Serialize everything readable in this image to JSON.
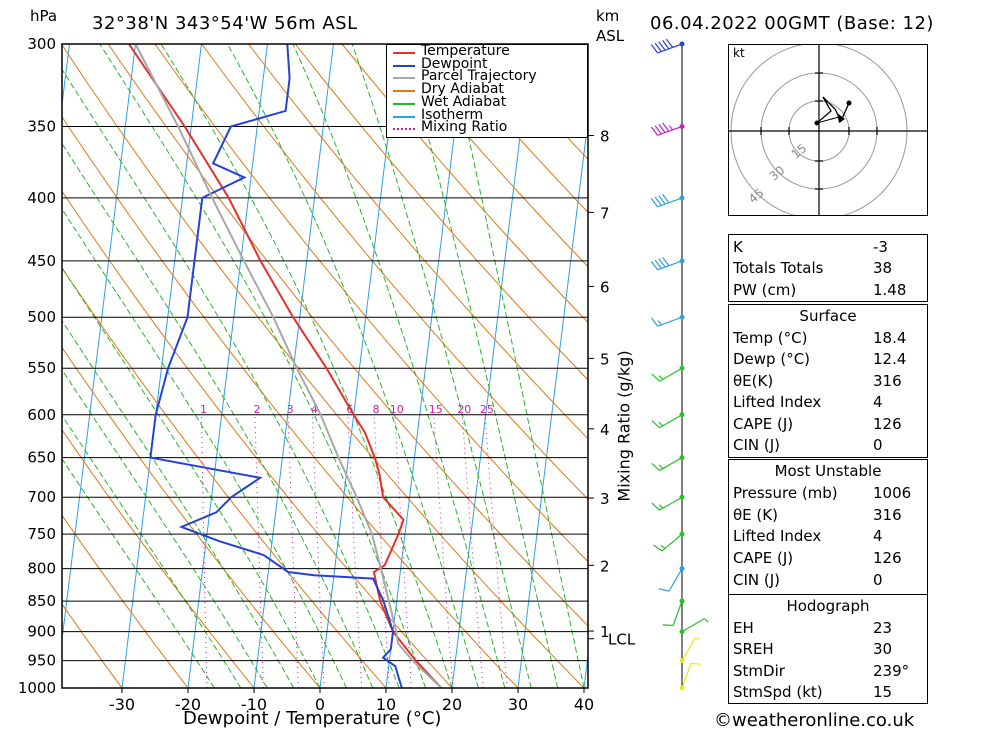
{
  "header": {
    "unit_hpa": "hPa",
    "location": "32°38'N  343°54'W  56m  ASL",
    "km_label": "km",
    "asl_label": "ASL",
    "datetime": "06.04.2022  00GMT  (Base: 12)"
  },
  "chart_data": {
    "type": "line",
    "title": "32°38'N  343°54'W  56m  ASL",
    "xlabel": "Dewpoint / Temperature (°C)",
    "ylabel": "hPa",
    "y2label": "Mixing Ratio (g/kg)",
    "xlim": [
      -40,
      40
    ],
    "ylim": [
      1000,
      300
    ],
    "pressure_ticks": [
      300,
      350,
      400,
      450,
      500,
      550,
      600,
      650,
      700,
      750,
      800,
      850,
      900,
      950,
      1000
    ],
    "temp_ticks": [
      -30,
      -20,
      -10,
      0,
      10,
      20,
      30,
      40
    ],
    "km_ticks": [
      "8",
      "7",
      "6",
      "5",
      "4",
      "3",
      "2",
      "1"
    ],
    "lcl_label": "LCL",
    "mixing_ratio_labels": [
      "1",
      "2",
      "3",
      "4",
      "6",
      "8",
      "10",
      "15",
      "20",
      "25"
    ],
    "legend": [
      "Temperature",
      "Dewpoint",
      "Parcel Trajectory",
      "Dry Adiabat",
      "Wet Adiabat",
      "Isotherm",
      "Mixing Ratio"
    ],
    "legend_position": "top-right",
    "colors": {
      "temperature": "#e8302a",
      "dewpoint": "#2442d8",
      "parcel": "#a8a8a8",
      "dry_adiabat": "#e07818",
      "wet_adiabat": "#28b428",
      "isotherm": "#30a0e0",
      "mixing_ratio": "#d020a0"
    },
    "series": [
      {
        "name": "Temperature",
        "points": [
          [
            1000,
            18.4
          ],
          [
            950,
            14
          ],
          [
            900,
            10
          ],
          [
            850,
            7.5
          ],
          [
            820,
            6.5
          ],
          [
            805,
            6
          ],
          [
            795,
            7.5
          ],
          [
            780,
            8
          ],
          [
            750,
            9
          ],
          [
            730,
            9.5
          ],
          [
            700,
            6
          ],
          [
            670,
            5
          ],
          [
            650,
            4
          ],
          [
            620,
            2
          ],
          [
            600,
            0
          ],
          [
            550,
            -5
          ],
          [
            500,
            -11
          ],
          [
            450,
            -17
          ],
          [
            400,
            -23
          ],
          [
            350,
            -31
          ],
          [
            300,
            -41
          ]
        ]
      },
      {
        "name": "Dewpoint",
        "points": [
          [
            1000,
            12.4
          ],
          [
            960,
            11
          ],
          [
            945,
            9
          ],
          [
            930,
            10
          ],
          [
            900,
            10
          ],
          [
            850,
            8
          ],
          [
            815,
            6
          ],
          [
            810,
            -3
          ],
          [
            805,
            -7
          ],
          [
            780,
            -11
          ],
          [
            760,
            -18
          ],
          [
            740,
            -24
          ],
          [
            720,
            -19
          ],
          [
            700,
            -17
          ],
          [
            675,
            -13
          ],
          [
            650,
            -30
          ],
          [
            600,
            -30
          ],
          [
            550,
            -29
          ],
          [
            500,
            -27
          ],
          [
            450,
            -27
          ],
          [
            400,
            -27
          ],
          [
            385,
            -21
          ],
          [
            375,
            -26
          ],
          [
            350,
            -24
          ],
          [
            340,
            -16
          ],
          [
            320,
            -16
          ],
          [
            300,
            -17
          ]
        ]
      },
      {
        "name": "Parcel Trajectory",
        "points": [
          [
            1000,
            18.4
          ],
          [
            950,
            13.5
          ],
          [
            920,
            11
          ],
          [
            900,
            10.5
          ],
          [
            850,
            8.8
          ],
          [
            800,
            7
          ],
          [
            750,
            5
          ],
          [
            700,
            2
          ],
          [
            650,
            -1.5
          ],
          [
            600,
            -5
          ],
          [
            550,
            -9.5
          ],
          [
            500,
            -14
          ],
          [
            450,
            -19.5
          ],
          [
            400,
            -25.5
          ],
          [
            350,
            -32
          ],
          [
            300,
            -40
          ]
        ]
      }
    ],
    "winds": [
      {
        "p": 1000,
        "dir": 20,
        "spd": 10,
        "color": "#e8e820"
      },
      {
        "p": 950,
        "dir": 30,
        "spd": 5,
        "color": "#e8e820"
      },
      {
        "p": 900,
        "dir": 60,
        "spd": 5,
        "color": "#28c028"
      },
      {
        "p": 850,
        "dir": 200,
        "spd": 10,
        "color": "#28c028"
      },
      {
        "p": 800,
        "dir": 210,
        "spd": 10,
        "color": "#30a0e0"
      },
      {
        "p": 750,
        "dir": 230,
        "spd": 15,
        "color": "#28c028"
      },
      {
        "p": 700,
        "dir": 240,
        "spd": 15,
        "color": "#28c028"
      },
      {
        "p": 650,
        "dir": 240,
        "spd": 15,
        "color": "#28c028"
      },
      {
        "p": 600,
        "dir": 240,
        "spd": 15,
        "color": "#28c028"
      },
      {
        "p": 550,
        "dir": 240,
        "spd": 15,
        "color": "#28c028"
      },
      {
        "p": 500,
        "dir": 250,
        "spd": 15,
        "color": "#30a0e0"
      },
      {
        "p": 450,
        "dir": 250,
        "spd": 40,
        "color": "#30a0e0"
      },
      {
        "p": 400,
        "dir": 250,
        "spd": 40,
        "color": "#30a0e0"
      },
      {
        "p": 350,
        "dir": 250,
        "spd": 45,
        "color": "#c020c0"
      },
      {
        "p": 300,
        "dir": 250,
        "spd": 50,
        "color": "#2442d8"
      }
    ]
  },
  "hodograph": {
    "unit": "kt",
    "ring_labels": [
      "15",
      "30",
      "45"
    ]
  },
  "indices": {
    "k_label": "K",
    "k_value": "-3",
    "tt_label": "Totals Totals",
    "tt_value": "38",
    "pw_label": "PW (cm)",
    "pw_value": "1.48"
  },
  "surface": {
    "title": "Surface",
    "temp_label": "Temp (°C)",
    "temp_value": "18.4",
    "dewp_label": "Dewp (°C)",
    "dewp_value": "12.4",
    "theta_label": "θE(K)",
    "theta_value": "316",
    "li_label": "Lifted Index",
    "li_value": "4",
    "cape_label": "CAPE (J)",
    "cape_value": "126",
    "cin_label": "CIN (J)",
    "cin_value": "0"
  },
  "most_unstable": {
    "title": "Most Unstable",
    "pressure_label": "Pressure (mb)",
    "pressure_value": "1006",
    "theta_label": "θE (K)",
    "theta_value": "316",
    "li_label": "Lifted Index",
    "li_value": "4",
    "cape_label": "CAPE (J)",
    "cape_value": "126",
    "cin_label": "CIN (J)",
    "cin_value": "0"
  },
  "hodo_params": {
    "title": "Hodograph",
    "eh_label": "EH",
    "eh_value": "23",
    "srh_label": "SREH",
    "srh_value": "30",
    "dir_label": "StmDir",
    "dir_value": "239°",
    "spd_label": "StmSpd (kt)",
    "spd_value": "15"
  },
  "footer": {
    "copyright": "©weatheronline.co.uk"
  }
}
